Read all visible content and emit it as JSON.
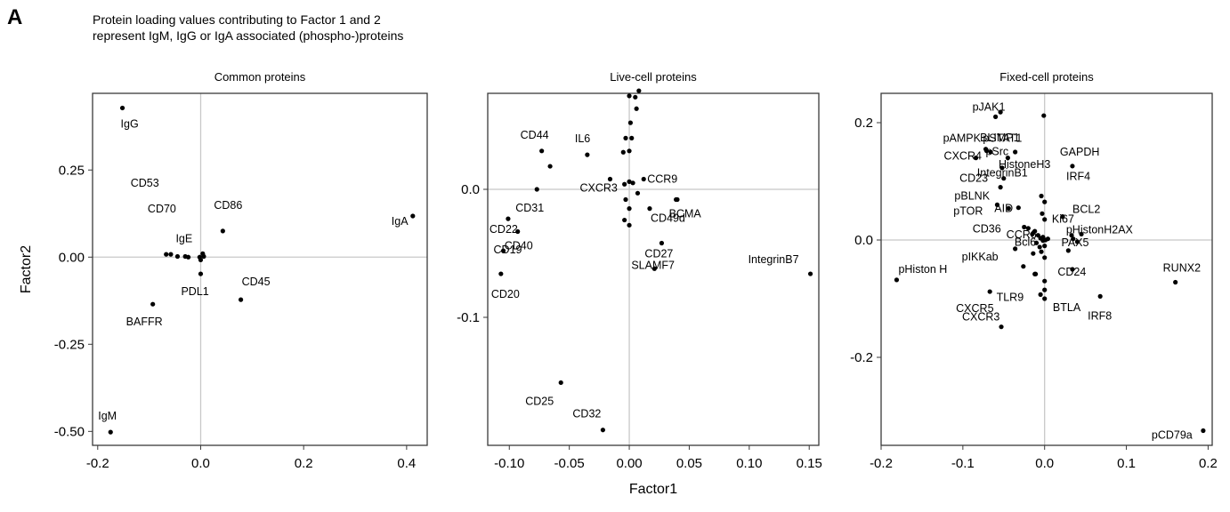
{
  "panel_label": "A",
  "figure_title": {
    "line1": "Protein loading values contributing to Factor 1 and 2",
    "line2": "represent IgM, IgG or IgA associated (phospho-)proteins"
  },
  "colors": {
    "point": "#000000",
    "zero_line": "#c8c8c8",
    "frame": "#3a3a3a",
    "background": "#ffffff"
  },
  "chart_data": [
    {
      "type": "scatter",
      "title": "Common proteins",
      "xlabel": "",
      "ylabel": "Factor2",
      "xlim": [
        -0.21,
        0.44
      ],
      "ylim": [
        -0.54,
        0.47
      ],
      "xticks": [
        -0.2,
        0.0,
        0.2,
        0.4
      ],
      "xtick_labels": [
        "-0.2",
        "0.0",
        "0.2",
        "0.4"
      ],
      "yticks": [
        -0.5,
        -0.25,
        0.0,
        0.25
      ],
      "ytick_labels": [
        "-0.50",
        "-0.25",
        "0.00",
        "0.25"
      ],
      "zero_lines": true,
      "grid": false,
      "points": [
        {
          "label": "IgG",
          "x": -0.152,
          "y": 0.428
        },
        {
          "label": "CD53",
          "x": -0.067,
          "y": 0.008
        },
        {
          "label": "CD70",
          "x": -0.058,
          "y": 0.008
        },
        {
          "label": "IgE",
          "x": -0.045,
          "y": 0.002
        },
        {
          "label": "",
          "x": -0.03,
          "y": 0.002
        },
        {
          "label": "",
          "x": -0.024,
          "y": 0.0
        },
        {
          "label": "",
          "x": -0.002,
          "y": 0.0
        },
        {
          "label": "",
          "x": 0.0,
          "y": -0.008
        },
        {
          "label": "",
          "x": 0.004,
          "y": 0.01
        },
        {
          "label": "",
          "x": 0.006,
          "y": 0.002
        },
        {
          "label": "PDL1",
          "x": 0.0,
          "y": -0.048
        },
        {
          "label": "CD86",
          "x": 0.043,
          "y": 0.075
        },
        {
          "label": "CD45",
          "x": 0.078,
          "y": -0.122
        },
        {
          "label": "IgA",
          "x": 0.412,
          "y": 0.118
        },
        {
          "label": "BAFFR",
          "x": -0.093,
          "y": -0.135
        },
        {
          "label": "IgM",
          "x": -0.175,
          "y": -0.502
        }
      ]
    },
    {
      "type": "scatter",
      "title": "Live-cell proteins",
      "xlabel": "Factor1",
      "ylabel": "",
      "xlim": [
        -0.118,
        0.158
      ],
      "ylim": [
        -0.2,
        0.075
      ],
      "xticks": [
        -0.1,
        -0.05,
        0.0,
        0.05,
        0.1,
        0.15
      ],
      "xtick_labels": [
        "-0.10",
        "-0.05",
        "0.00",
        "0.05",
        "0.10",
        "0.15"
      ],
      "yticks": [
        -0.1,
        0.0
      ],
      "ytick_labels": [
        "-0.1",
        "0.0"
      ],
      "zero_lines": true,
      "grid": false,
      "points": [
        {
          "label": "CD44",
          "x": -0.073,
          "y": 0.03
        },
        {
          "label": "",
          "x": -0.066,
          "y": 0.018
        },
        {
          "label": "IL6",
          "x": -0.035,
          "y": 0.027
        },
        {
          "label": "CD31",
          "x": -0.077,
          "y": 0.0
        },
        {
          "label": "CXCR3",
          "x": -0.016,
          "y": 0.008
        },
        {
          "label": "CD22",
          "x": -0.101,
          "y": -0.023
        },
        {
          "label": "CD40",
          "x": -0.093,
          "y": -0.033
        },
        {
          "label": "CD19",
          "x": -0.105,
          "y": -0.048
        },
        {
          "label": "CD20",
          "x": -0.107,
          "y": -0.066
        },
        {
          "label": "CCR9",
          "x": 0.012,
          "y": 0.008
        },
        {
          "label": "CD49d",
          "x": 0.017,
          "y": -0.015
        },
        {
          "label": "BCMA",
          "x": 0.039,
          "y": -0.008
        },
        {
          "label": "CD27",
          "x": 0.027,
          "y": -0.042
        },
        {
          "label": "SLAMF7",
          "x": 0.021,
          "y": -0.062
        },
        {
          "label": "IntegrinB7",
          "x": 0.151,
          "y": -0.066
        },
        {
          "label": "CD25",
          "x": -0.057,
          "y": -0.151
        },
        {
          "label": "CD32",
          "x": -0.022,
          "y": -0.188
        },
        {
          "label": "",
          "x": 0.0,
          "y": 0.073
        },
        {
          "label": "",
          "x": 0.005,
          "y": 0.072
        },
        {
          "label": "",
          "x": 0.008,
          "y": 0.077
        },
        {
          "label": "",
          "x": 0.006,
          "y": 0.063
        },
        {
          "label": "",
          "x": 0.001,
          "y": 0.052
        },
        {
          "label": "",
          "x": -0.003,
          "y": 0.04
        },
        {
          "label": "",
          "x": 0.002,
          "y": 0.04
        },
        {
          "label": "",
          "x": -0.005,
          "y": 0.029
        },
        {
          "label": "",
          "x": 0.0,
          "y": 0.03
        },
        {
          "label": "",
          "x": -0.004,
          "y": 0.004
        },
        {
          "label": "",
          "x": 0.0,
          "y": 0.006
        },
        {
          "label": "",
          "x": 0.003,
          "y": 0.005
        },
        {
          "label": "",
          "x": -0.003,
          "y": -0.008
        },
        {
          "label": "",
          "x": 0.0,
          "y": -0.015
        },
        {
          "label": "",
          "x": -0.004,
          "y": -0.024
        },
        {
          "label": "",
          "x": 0.0,
          "y": -0.028
        },
        {
          "label": "",
          "x": 0.007,
          "y": -0.003
        },
        {
          "label": "",
          "x": 0.04,
          "y": -0.008
        }
      ]
    },
    {
      "type": "scatter",
      "title": "Fixed-cell proteins",
      "xlabel": "",
      "ylabel": "",
      "xlim": [
        -0.2,
        0.205
      ],
      "ylim": [
        -0.35,
        0.25
      ],
      "xticks": [
        -0.2,
        -0.1,
        0.0,
        0.1,
        0.2
      ],
      "xtick_labels": [
        "-0.2",
        "-0.1",
        "0.0",
        "0.1",
        "0.2"
      ],
      "yticks": [
        -0.2,
        0.0,
        0.2
      ],
      "ytick_labels": [
        "-0.2",
        "0.0",
        "0.2"
      ],
      "zero_lines": true,
      "grid": false,
      "points": [
        {
          "label": "pJAK1",
          "x": -0.06,
          "y": 0.21
        },
        {
          "label": "",
          "x": -0.054,
          "y": 0.218
        },
        {
          "label": "",
          "x": -0.001,
          "y": 0.212
        },
        {
          "label": "pSTAT1",
          "x": -0.045,
          "y": 0.14
        },
        {
          "label": "pAMPK",
          "x": -0.072,
          "y": 0.155
        },
        {
          "label": "BLIMP1",
          "x": -0.066,
          "y": 0.15
        },
        {
          "label": "pSrc",
          "x": -0.071,
          "y": 0.152
        },
        {
          "label": "",
          "x": -0.036,
          "y": 0.15
        },
        {
          "label": "HistoneH3",
          "x": -0.052,
          "y": 0.123
        },
        {
          "label": "CXCR4",
          "x": -0.084,
          "y": 0.14
        },
        {
          "label": "IntegrinB1",
          "x": -0.05,
          "y": 0.105
        },
        {
          "label": "pBLNK",
          "x": -0.058,
          "y": 0.06
        },
        {
          "label": "CD23",
          "x": -0.054,
          "y": 0.09
        },
        {
          "label": "AID",
          "x": -0.032,
          "y": 0.055
        },
        {
          "label": "pTOR",
          "x": -0.044,
          "y": 0.054
        },
        {
          "label": "CD36",
          "x": -0.025,
          "y": 0.022
        },
        {
          "label": "CCR6",
          "x": -0.012,
          "y": 0.015
        },
        {
          "label": "Ki67",
          "x": 0.022,
          "y": 0.04
        },
        {
          "label": "Bcl6",
          "x": -0.002,
          "y": -0.001
        },
        {
          "label": "pHistonH2AX",
          "x": 0.035,
          "y": 0.002
        },
        {
          "label": "PAX5",
          "x": 0.04,
          "y": -0.003
        },
        {
          "label": "BCL2",
          "x": 0.045,
          "y": 0.01
        },
        {
          "label": "IRF4",
          "x": 0.033,
          "y": 0.008
        },
        {
          "label": "GAPDH",
          "x": 0.034,
          "y": 0.126
        },
        {
          "label": "pIKKab",
          "x": -0.036,
          "y": -0.015
        },
        {
          "label": "CD24",
          "x": 0.029,
          "y": -0.018
        },
        {
          "label": "BTLA",
          "x": 0.034,
          "y": -0.05
        },
        {
          "label": "TLR9",
          "x": -0.011,
          "y": -0.058
        },
        {
          "label": "IRF8",
          "x": 0.068,
          "y": -0.096
        },
        {
          "label": "CXCR5",
          "x": -0.067,
          "y": -0.088
        },
        {
          "label": "CXCR3",
          "x": -0.053,
          "y": -0.148
        },
        {
          "label": "pHiston H",
          "x": -0.181,
          "y": -0.068
        },
        {
          "label": "RUNX2",
          "x": 0.16,
          "y": -0.072
        },
        {
          "label": "pCD79a",
          "x": 0.194,
          "y": -0.325
        },
        {
          "label": "",
          "x": -0.004,
          "y": 0.075
        },
        {
          "label": "",
          "x": 0.0,
          "y": 0.065
        },
        {
          "label": "",
          "x": -0.003,
          "y": 0.045
        },
        {
          "label": "",
          "x": 0.0,
          "y": 0.035
        },
        {
          "label": "",
          "x": -0.02,
          "y": 0.02
        },
        {
          "label": "",
          "x": -0.015,
          "y": 0.01
        },
        {
          "label": "",
          "x": -0.008,
          "y": 0.008
        },
        {
          "label": "",
          "x": -0.005,
          "y": 0.003
        },
        {
          "label": "",
          "x": -0.002,
          "y": 0.005
        },
        {
          "label": "",
          "x": 0.001,
          "y": 0.0
        },
        {
          "label": "",
          "x": 0.004,
          "y": 0.002
        },
        {
          "label": "",
          "x": -0.01,
          "y": -0.005
        },
        {
          "label": "",
          "x": -0.006,
          "y": -0.012
        },
        {
          "label": "",
          "x": 0.0,
          "y": -0.01
        },
        {
          "label": "",
          "x": -0.004,
          "y": -0.02
        },
        {
          "label": "",
          "x": -0.014,
          "y": -0.023
        },
        {
          "label": "",
          "x": 0.0,
          "y": -0.03
        },
        {
          "label": "",
          "x": -0.026,
          "y": -0.045
        },
        {
          "label": "",
          "x": -0.012,
          "y": -0.058
        },
        {
          "label": "",
          "x": 0.0,
          "y": -0.07
        },
        {
          "label": "",
          "x": 0.0,
          "y": -0.085
        },
        {
          "label": "",
          "x": 0.0,
          "y": -0.1
        },
        {
          "label": "",
          "x": -0.005,
          "y": -0.093
        }
      ]
    }
  ]
}
